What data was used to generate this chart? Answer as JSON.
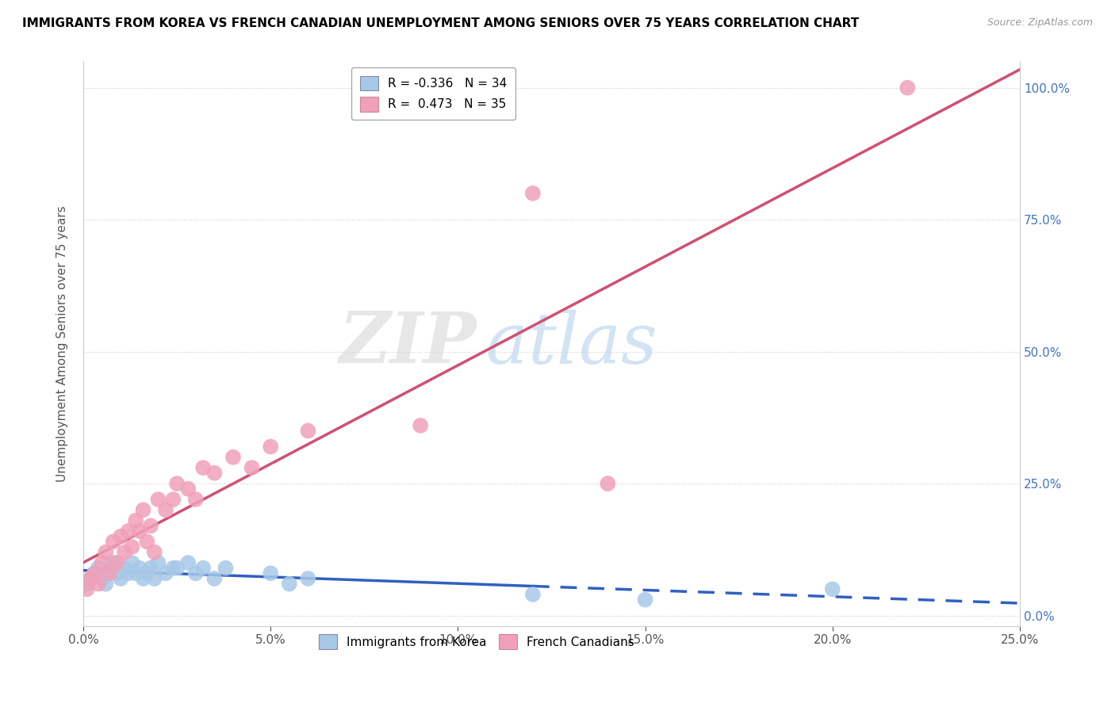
{
  "title": "IMMIGRANTS FROM KOREA VS FRENCH CANADIAN UNEMPLOYMENT AMONG SENIORS OVER 75 YEARS CORRELATION CHART",
  "source": "Source: ZipAtlas.com",
  "ylabel": "Unemployment Among Seniors over 75 years",
  "xlim": [
    0.0,
    0.25
  ],
  "ylim": [
    -0.02,
    1.05
  ],
  "xtick_labels": [
    "0.0%",
    "5.0%",
    "10.0%",
    "15.0%",
    "20.0%",
    "25.0%"
  ],
  "xtick_vals": [
    0.0,
    0.05,
    0.1,
    0.15,
    0.2,
    0.25
  ],
  "ytick_labels": [
    "0.0%",
    "25.0%",
    "50.0%",
    "75.0%",
    "100.0%"
  ],
  "ytick_vals": [
    0.0,
    0.25,
    0.5,
    0.75,
    1.0
  ],
  "legend_r_blue": "-0.336",
  "legend_n_blue": "34",
  "legend_r_pink": "0.473",
  "legend_n_pink": "35",
  "blue_color": "#A8C8E8",
  "pink_color": "#F0A0B8",
  "blue_line_color": "#3060C0",
  "pink_line_color": "#D05070",
  "watermark_zip": "ZIP",
  "watermark_atlas": "atlas",
  "korea_x": [
    0.001,
    0.002,
    0.003,
    0.004,
    0.005,
    0.006,
    0.007,
    0.008,
    0.009,
    0.01,
    0.011,
    0.012,
    0.013,
    0.014,
    0.015,
    0.016,
    0.017,
    0.018,
    0.019,
    0.02,
    0.022,
    0.024,
    0.025,
    0.028,
    0.03,
    0.032,
    0.035,
    0.038,
    0.05,
    0.055,
    0.06,
    0.12,
    0.15,
    0.2
  ],
  "korea_y": [
    0.06,
    0.07,
    0.08,
    0.09,
    0.07,
    0.06,
    0.09,
    0.1,
    0.08,
    0.07,
    0.09,
    0.08,
    0.1,
    0.08,
    0.09,
    0.07,
    0.08,
    0.09,
    0.07,
    0.1,
    0.08,
    0.09,
    0.09,
    0.1,
    0.08,
    0.09,
    0.07,
    0.09,
    0.08,
    0.06,
    0.07,
    0.04,
    0.03,
    0.05
  ],
  "french_x": [
    0.001,
    0.002,
    0.003,
    0.004,
    0.005,
    0.006,
    0.007,
    0.008,
    0.009,
    0.01,
    0.011,
    0.012,
    0.013,
    0.014,
    0.015,
    0.016,
    0.017,
    0.018,
    0.019,
    0.02,
    0.022,
    0.024,
    0.025,
    0.028,
    0.03,
    0.032,
    0.035,
    0.04,
    0.045,
    0.05,
    0.06,
    0.09,
    0.12,
    0.14,
    0.22
  ],
  "french_y": [
    0.05,
    0.07,
    0.08,
    0.06,
    0.1,
    0.12,
    0.08,
    0.14,
    0.1,
    0.15,
    0.12,
    0.16,
    0.13,
    0.18,
    0.16,
    0.2,
    0.14,
    0.17,
    0.12,
    0.22,
    0.2,
    0.22,
    0.25,
    0.24,
    0.22,
    0.28,
    0.27,
    0.3,
    0.28,
    0.32,
    0.35,
    0.36,
    0.8,
    0.25,
    1.0
  ]
}
